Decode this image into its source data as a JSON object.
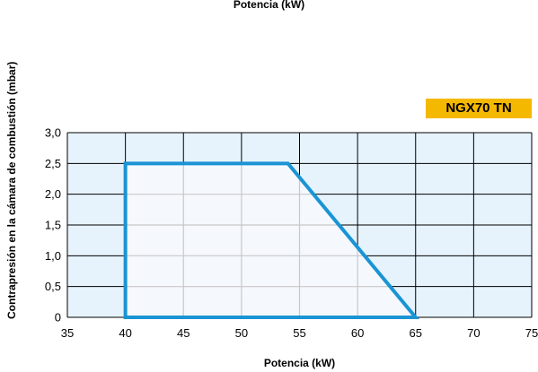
{
  "top_title": "Potencia (kW)",
  "badge_label": "NGX70 TN",
  "colors": {
    "plot_bg": "#e6f3fc",
    "grid": "#000000",
    "region_fill": "#f5f9fd",
    "region_inner_grid": "#c8c8c8",
    "region_stroke": "#1a94d4",
    "badge": "#f5b800"
  },
  "chart_data": {
    "type": "area",
    "title": "",
    "xlabel": "Potencia (kW)",
    "ylabel": "Contrapresión en la cámara de combustión (mbar)",
    "xlim": [
      35,
      75
    ],
    "ylim": [
      0,
      3.0
    ],
    "x_ticks": [
      35,
      40,
      45,
      50,
      55,
      60,
      65,
      70,
      75
    ],
    "x_tick_labels": [
      "35",
      "40",
      "45",
      "50",
      "55",
      "60",
      "65",
      "70",
      "75"
    ],
    "y_ticks": [
      0,
      0.5,
      1.0,
      1.5,
      2.0,
      2.5,
      3.0
    ],
    "y_tick_labels": [
      "0",
      "0,5",
      "1,0",
      "1,5",
      "2,0",
      "2,5",
      "3,0"
    ],
    "grid": true,
    "series": [
      {
        "name": "NGX70 TN",
        "points": [
          [
            40,
            0
          ],
          [
            40,
            2.5
          ],
          [
            54,
            2.5
          ],
          [
            65,
            0
          ]
        ]
      }
    ]
  }
}
